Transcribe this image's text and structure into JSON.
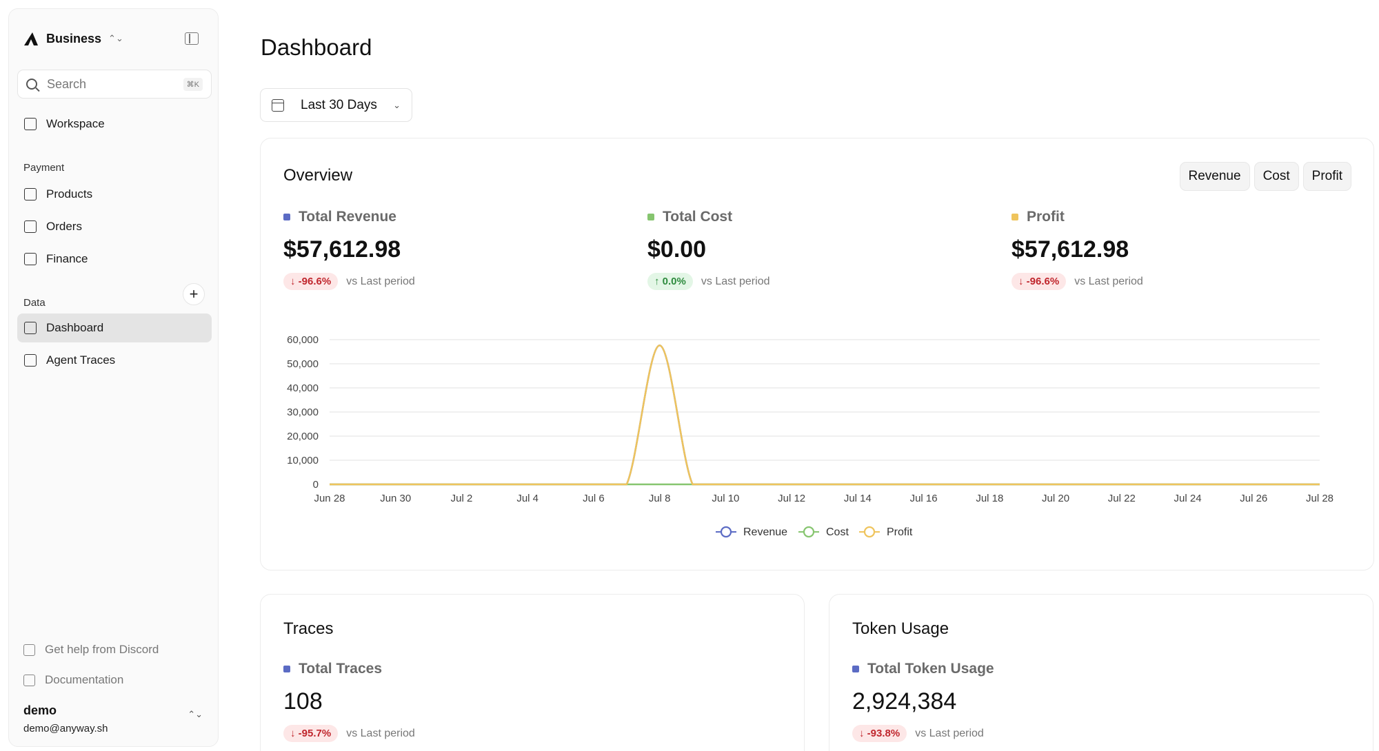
{
  "sidebar": {
    "brand": "Business",
    "search": {
      "placeholder": "Search",
      "shortcut": "⌘K"
    },
    "workspace": "Workspace",
    "payment_label": "Payment",
    "payment_items": [
      "Products",
      "Orders",
      "Finance"
    ],
    "data_label": "Data",
    "data_items": [
      "Dashboard",
      "Agent Traces"
    ],
    "footer": {
      "discord": "Get help from Discord",
      "docs": "Documentation"
    },
    "user": {
      "name": "demo",
      "email": "demo@anyway.sh"
    }
  },
  "main": {
    "title": "Dashboard",
    "range": "Last 30 Days"
  },
  "overview": {
    "title": "Overview",
    "toggles": [
      "Revenue",
      "Cost",
      "Profit"
    ],
    "metrics": [
      {
        "label": "Total Revenue",
        "value": "$57,612.98",
        "change": "-96.6%",
        "direction": "down",
        "color": "#5b6bc4"
      },
      {
        "label": "Total Cost",
        "value": "$0.00",
        "change": "0.0%",
        "direction": "up",
        "color": "#86c56f"
      },
      {
        "label": "Profit",
        "value": "$57,612.98",
        "change": "-96.6%",
        "direction": "down",
        "color": "#efc45c"
      }
    ],
    "vs_label": "vs Last period"
  },
  "chart_data": {
    "type": "line",
    "x": [
      "Jun 28",
      "Jun 29",
      "Jun 30",
      "Jul 1",
      "Jul 2",
      "Jul 3",
      "Jul 4",
      "Jul 5",
      "Jul 6",
      "Jul 7",
      "Jul 8",
      "Jul 9",
      "Jul 10",
      "Jul 11",
      "Jul 12",
      "Jul 13",
      "Jul 14",
      "Jul 15",
      "Jul 16",
      "Jul 17",
      "Jul 18",
      "Jul 19",
      "Jul 20",
      "Jul 21",
      "Jul 22",
      "Jul 23",
      "Jul 24",
      "Jul 25",
      "Jul 26",
      "Jul 27",
      "Jul 28"
    ],
    "tick_labels": [
      "Jun 28",
      "Jun 30",
      "Jul 2",
      "Jul 4",
      "Jul 6",
      "Jul 8",
      "Jul 10",
      "Jul 12",
      "Jul 14",
      "Jul 16",
      "Jul 18",
      "Jul 20",
      "Jul 22",
      "Jul 24",
      "Jul 26",
      "Jul 28"
    ],
    "series": [
      {
        "name": "Revenue",
        "color": "#5b6bc4",
        "values": [
          0,
          0,
          0,
          0,
          0,
          0,
          0,
          0,
          0,
          0,
          57612.98,
          0,
          0,
          0,
          0,
          0,
          0,
          0,
          0,
          0,
          0,
          0,
          0,
          0,
          0,
          0,
          0,
          0,
          0,
          0,
          0
        ]
      },
      {
        "name": "Cost",
        "color": "#86c56f",
        "values": [
          0,
          0,
          0,
          0,
          0,
          0,
          0,
          0,
          0,
          0,
          0,
          0,
          0,
          0,
          0,
          0,
          0,
          0,
          0,
          0,
          0,
          0,
          0,
          0,
          0,
          0,
          0,
          0,
          0,
          0,
          0
        ]
      },
      {
        "name": "Profit",
        "color": "#efc45c",
        "values": [
          0,
          0,
          0,
          0,
          0,
          0,
          0,
          0,
          0,
          0,
          57612.98,
          0,
          0,
          0,
          0,
          0,
          0,
          0,
          0,
          0,
          0,
          0,
          0,
          0,
          0,
          0,
          0,
          0,
          0,
          0,
          0
        ]
      }
    ],
    "y_ticks": [
      "0",
      "10,000",
      "20,000",
      "30,000",
      "40,000",
      "50,000",
      "60,000"
    ],
    "ylim": [
      0,
      60000
    ],
    "grid": true,
    "legend": "bottom-center"
  },
  "traces": {
    "title": "Traces",
    "label": "Total Traces",
    "value": "108",
    "change": "-95.7%",
    "vs": "vs Last period"
  },
  "tokens": {
    "title": "Token Usage",
    "label": "Total Token Usage",
    "value": "2,924,384",
    "change": "-93.8%",
    "vs": "vs Last period"
  }
}
